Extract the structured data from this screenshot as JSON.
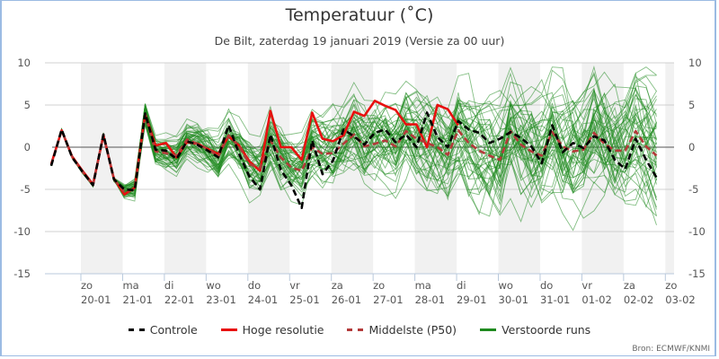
{
  "chart_data": {
    "type": "line",
    "title": "Temperatuur (˚C)",
    "subtitle": "De Bilt, zaterdag 19 januari 2019 (Versie za 00 uur)",
    "ylim": [
      -15,
      10
    ],
    "yticks": [
      10,
      5,
      0,
      -5,
      -10,
      -15
    ],
    "grid": true,
    "x_step": "6 uur",
    "x_ticks": [
      {
        "day": "zo",
        "date": "20-01"
      },
      {
        "day": "ma",
        "date": "21-01"
      },
      {
        "day": "di",
        "date": "22-01"
      },
      {
        "day": "wo",
        "date": "23-01"
      },
      {
        "day": "do",
        "date": "24-01"
      },
      {
        "day": "vr",
        "date": "25-01"
      },
      {
        "day": "za",
        "date": "26-01"
      },
      {
        "day": "zo",
        "date": "27-01"
      },
      {
        "day": "ma",
        "date": "28-01"
      },
      {
        "day": "di",
        "date": "29-01"
      },
      {
        "day": "wo",
        "date": "30-01"
      },
      {
        "day": "do",
        "date": "31-01"
      },
      {
        "day": "vr",
        "date": "01-02"
      },
      {
        "day": "za",
        "date": "02-02"
      },
      {
        "day": "zo",
        "date": "03-02"
      }
    ],
    "legend_position": "bottom",
    "series": [
      {
        "name": "Controle",
        "color": "#000000",
        "dash": true,
        "values": [
          -2.2,
          2.1,
          -1.2,
          -2.9,
          -4.5,
          1.5,
          -3.8,
          -5.0,
          -5.1,
          4.0,
          -0.3,
          -0.4,
          -1.4,
          0.7,
          0.3,
          -0.4,
          -1.2,
          2.6,
          -0.8,
          -3.5,
          -5.0,
          1.5,
          -2.7,
          -4.5,
          -7.2,
          0.8,
          -3.2,
          -1.6,
          2.1,
          1.3,
          0.3,
          1.7,
          2.1,
          0.6,
          1.5,
          0.0,
          4.1,
          1.2,
          0.0,
          3.1,
          2.1,
          1.7,
          0.5,
          1.0,
          1.8,
          1.1,
          0.1,
          -1.9,
          2.6,
          -0.6,
          0.5,
          -0.1,
          1.3,
          0.8,
          -1.5,
          -2.6,
          1.0,
          -1.5,
          -3.6
        ]
      },
      {
        "name": "Hoge resolutie",
        "color": "#e8100f",
        "dash": false,
        "values": [
          -2.0,
          2.0,
          -1.1,
          -2.8,
          -4.4,
          1.4,
          -3.7,
          -5.6,
          -4.8,
          3.9,
          0.2,
          0.5,
          -1.2,
          0.6,
          0.4,
          -0.2,
          -0.8,
          1.3,
          0.2,
          -1.7,
          -2.8,
          4.3,
          0.0,
          0.0,
          -1.5,
          4.1,
          1.0,
          0.7,
          1.4,
          4.2,
          3.7,
          5.5,
          4.9,
          4.4,
          2.7,
          2.7,
          0.0,
          5.0,
          4.5,
          2.6
        ]
      },
      {
        "name": "Middelste (P50)",
        "color": "#b33a3a",
        "dash": true,
        "values": [
          -2.1,
          2.0,
          -1.1,
          -2.9,
          -4.5,
          1.5,
          -3.8,
          -5.3,
          -5.0,
          3.9,
          -0.5,
          -0.7,
          -1.0,
          0.9,
          0.4,
          -0.2,
          -1.1,
          1.4,
          0.1,
          -2.0,
          -2.5,
          0.8,
          -1.2,
          -2.4,
          -2.8,
          0.0,
          -0.8,
          -0.7,
          0.4,
          1.5,
          0.1,
          0.4,
          0.8,
          0.1,
          1.9,
          1.0,
          0.5,
          0.0,
          -0.9,
          2.0,
          0.5,
          -0.4,
          -1.0,
          -1.5,
          1.9,
          0.3,
          -0.5,
          -1.0,
          1.8,
          0.1,
          -0.5,
          -0.3,
          1.7,
          0.4,
          -0.4,
          -0.4,
          1.9,
          0.1,
          -1.0
        ]
      },
      {
        "name": "Verstoorde runs",
        "color": "#1f8a1f",
        "dash": false,
        "members": 50
      }
    ]
  },
  "footer": {
    "source": "Bron: ECMWF/KNMI"
  }
}
